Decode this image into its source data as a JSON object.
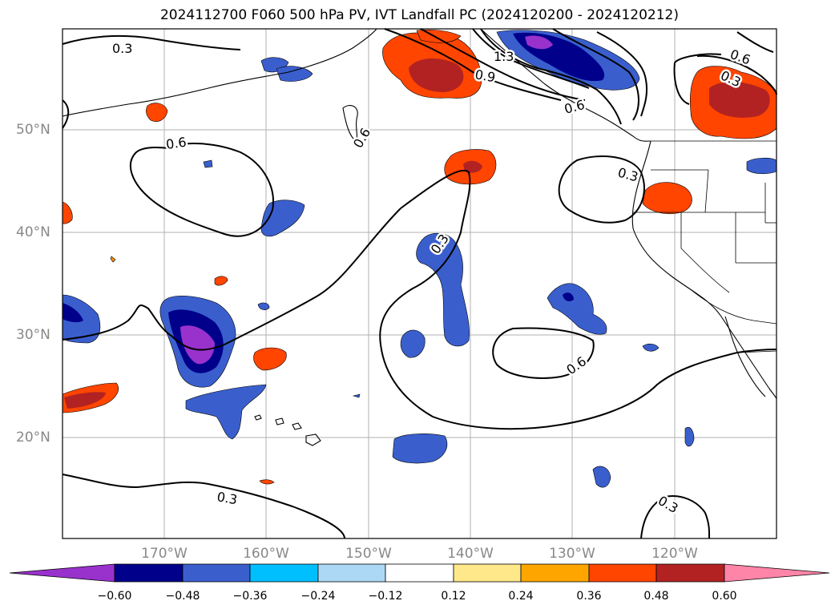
{
  "title": "2024112700 F060 500 hPa PV, IVT Landfall PC (2024120200 - 2024120212)",
  "latitude_labels": [
    "50°N",
    "40°N",
    "30°N",
    "20°N"
  ],
  "longitude_labels": [
    "170°W",
    "160°W",
    "150°W",
    "140°W",
    "130°W",
    "120°W"
  ],
  "contour_labels": [
    "0.3",
    "0.6",
    "0.6",
    "0.9",
    "1.3",
    "0.6",
    "0.3",
    "0.6",
    "0.3",
    "0.6",
    "0.3",
    "0.3",
    "0.3"
  ],
  "colorbar": {
    "ticks": [
      "−0.60",
      "−0.48",
      "−0.36",
      "−0.24",
      "−0.12",
      "0.12",
      "0.24",
      "0.36",
      "0.48",
      "0.60"
    ],
    "colors": [
      "#9932cc",
      "#00008b",
      "#3a5fcd",
      "#00bfff",
      "#add8f5",
      "#ffffff",
      "#ffe88a",
      "#ffa500",
      "#ff4500",
      "#b22222",
      "#ff85a8"
    ]
  },
  "colors": {
    "negative_strong": "#9932cc",
    "negative": "#3a5fcd",
    "positive": "#ff4500",
    "positive_strong": "#b22222",
    "contour": "#000000",
    "gridline": "#b0b0b0"
  }
}
